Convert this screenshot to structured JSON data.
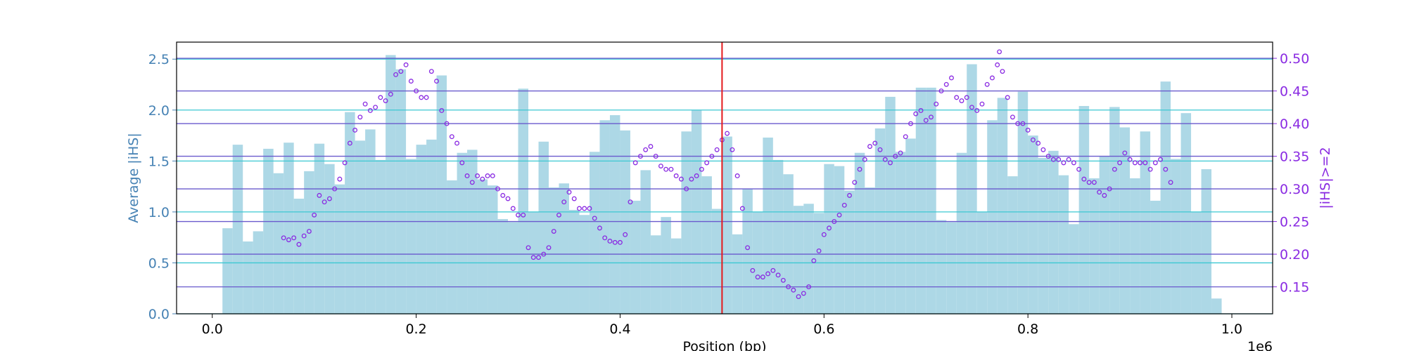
{
  "chart_data": {
    "type": "combo",
    "xlabel": "Position (bp)",
    "ylabel": "Average |iHS|",
    "y2label": "|iHS|>=2",
    "x_offset_label": "1e6",
    "xlim": [
      -35000,
      1040000
    ],
    "xticks": [
      {
        "value": 0,
        "label": "0.0"
      },
      {
        "value": 200000,
        "label": "0.2"
      },
      {
        "value": 400000,
        "label": "0.4"
      },
      {
        "value": 600000,
        "label": "0.6"
      },
      {
        "value": 800000,
        "label": "0.8"
      },
      {
        "value": 1000000,
        "label": "1.0"
      }
    ],
    "ylim": [
      0,
      2.667
    ],
    "yticks": [
      {
        "value": 0,
        "label": "0.0"
      },
      0.5,
      {
        "value": 1,
        "label": "1.0"
      },
      1.5,
      {
        "value": 2,
        "label": "2.0"
      },
      2.5
    ],
    "y2lim": [
      0.1087,
      0.5248
    ],
    "y2ticks": [
      0.15,
      {
        "value": 0.2,
        "label": "0.20"
      },
      0.25,
      {
        "value": 0.3,
        "label": "0.30"
      },
      0.35,
      {
        "value": 0.4,
        "label": "0.40"
      },
      0.45,
      {
        "value": 0.5,
        "label": "0.50"
      }
    ],
    "y_color": "#4682b4",
    "y2_color": "#8a2be2",
    "grid": true,
    "grid_color": "#3cc8d2",
    "y2grid_color": "#6a5acd",
    "vlines": [
      {
        "x": 500000,
        "color": "#e41a1c"
      }
    ],
    "series": [
      {
        "type": "bar",
        "color": "#add8e6",
        "bins": [
          10000,
          20000,
          30000,
          40000,
          50000,
          60000,
          70000,
          80000,
          90000,
          100000,
          110000,
          120000,
          130000,
          140000,
          150000,
          160000,
          170000,
          180000,
          190000,
          200000,
          210000,
          220000,
          230000,
          240000,
          250000,
          260000,
          270000,
          280000,
          290000,
          300000,
          310000,
          320000,
          330000,
          340000,
          350000,
          360000,
          370000,
          380000,
          390000,
          400000,
          410000,
          420000,
          430000,
          440000,
          450000,
          460000,
          470000,
          480000,
          490000,
          500000,
          510000,
          520000,
          530000,
          540000,
          550000,
          560000,
          570000,
          580000,
          590000,
          600000,
          610000,
          620000,
          630000,
          640000,
          650000,
          660000,
          670000,
          680000,
          690000,
          700000,
          710000,
          720000,
          730000,
          740000,
          750000,
          760000,
          770000,
          780000,
          790000,
          800000,
          810000,
          820000,
          830000,
          840000,
          850000,
          860000,
          870000,
          880000,
          890000,
          900000,
          910000,
          920000,
          930000,
          940000,
          950000,
          960000,
          970000,
          980000,
          990000
        ],
        "values": [
          0.84,
          1.66,
          0.71,
          0.81,
          1.62,
          1.38,
          1.68,
          1.13,
          1.4,
          1.67,
          1.47,
          1.27,
          1.98,
          1.7,
          1.81,
          1.51,
          2.54,
          2.4,
          1.52,
          1.66,
          1.71,
          2.34,
          1.31,
          1.58,
          1.61,
          1.32,
          1.26,
          0.93,
          0.9,
          2.21,
          1.0,
          1.69,
          1.24,
          1.28,
          1.02,
          0.97,
          1.59,
          1.9,
          1.95,
          1.8,
          1.11,
          1.41,
          0.77,
          0.95,
          0.74,
          1.79,
          2.0,
          1.35,
          1.03,
          1.74,
          0.78,
          1.23,
          1.0,
          1.73,
          1.51,
          1.37,
          1.06,
          1.08,
          0.99,
          1.47,
          1.45,
          1.21,
          1.58,
          1.24,
          1.82,
          2.13,
          1.59,
          1.72,
          2.22,
          2.22,
          0.92,
          0.9,
          1.58,
          2.45,
          1.0,
          1.9,
          2.12,
          1.35,
          2.18,
          1.75,
          1.53,
          1.6,
          1.36,
          0.88,
          2.04,
          1.33,
          1.55,
          2.03,
          1.83,
          1.33,
          1.79,
          1.11,
          2.28,
          1.52,
          1.97,
          1.0,
          1.42,
          0.15
        ]
      },
      {
        "type": "scatter",
        "axis": "y2",
        "color": "#8a2be2",
        "x": [
          70000,
          75000,
          80000,
          85000,
          90000,
          95000,
          100000,
          105000,
          110000,
          115000,
          120000,
          125000,
          130000,
          135000,
          140000,
          145000,
          150000,
          155000,
          160000,
          165000,
          170000,
          175000,
          180000,
          185000,
          190000,
          195000,
          200000,
          205000,
          210000,
          215000,
          220000,
          225000,
          230000,
          235000,
          240000,
          245000,
          250000,
          255000,
          260000,
          265000,
          270000,
          275000,
          280000,
          285000,
          290000,
          295000,
          300000,
          305000,
          310000,
          315000,
          320000,
          325000,
          330000,
          335000,
          340000,
          345000,
          350000,
          355000,
          360000,
          365000,
          370000,
          375000,
          380000,
          385000,
          390000,
          395000,
          400000,
          405000,
          410000,
          415000,
          420000,
          425000,
          430000,
          435000,
          440000,
          445000,
          450000,
          455000,
          460000,
          465000,
          470000,
          475000,
          480000,
          485000,
          490000,
          495000,
          500000,
          505000,
          510000,
          515000,
          520000,
          525000,
          530000,
          535000,
          540000,
          545000,
          550000,
          555000,
          560000,
          565000,
          570000,
          575000,
          580000,
          585000,
          590000,
          595000,
          600000,
          605000,
          610000,
          615000,
          620000,
          625000,
          630000,
          635000,
          640000,
          645000,
          650000,
          655000,
          660000,
          665000,
          670000,
          675000,
          680000,
          685000,
          690000,
          695000,
          700000,
          705000,
          710000,
          715000,
          720000,
          725000,
          730000,
          735000,
          740000,
          745000,
          750000,
          755000,
          760000,
          765000,
          770000,
          772000,
          775000,
          780000,
          785000,
          790000,
          795000,
          800000,
          805000,
          810000,
          815000,
          820000,
          825000,
          830000,
          835000,
          840000,
          845000,
          850000,
          855000,
          860000,
          865000,
          870000,
          875000,
          880000,
          885000,
          890000,
          895000,
          900000,
          905000,
          910000,
          915000,
          920000,
          925000,
          930000,
          935000,
          940000
        ],
        "values": [
          0.225,
          0.222,
          0.225,
          0.215,
          0.228,
          0.235,
          0.26,
          0.29,
          0.28,
          0.285,
          0.3,
          0.315,
          0.34,
          0.37,
          0.39,
          0.41,
          0.43,
          0.42,
          0.425,
          0.44,
          0.435,
          0.445,
          0.475,
          0.48,
          0.49,
          0.465,
          0.45,
          0.44,
          0.44,
          0.48,
          0.465,
          0.42,
          0.4,
          0.38,
          0.37,
          0.34,
          0.32,
          0.31,
          0.32,
          0.315,
          0.32,
          0.32,
          0.3,
          0.29,
          0.285,
          0.27,
          0.26,
          0.26,
          0.21,
          0.195,
          0.195,
          0.2,
          0.21,
          0.235,
          0.26,
          0.28,
          0.295,
          0.285,
          0.27,
          0.27,
          0.27,
          0.255,
          0.24,
          0.225,
          0.22,
          0.218,
          0.218,
          0.23,
          0.28,
          0.34,
          0.35,
          0.36,
          0.365,
          0.35,
          0.335,
          0.33,
          0.33,
          0.32,
          0.315,
          0.3,
          0.315,
          0.32,
          0.33,
          0.34,
          0.35,
          0.36,
          0.375,
          0.385,
          0.36,
          0.32,
          0.27,
          0.21,
          0.175,
          0.165,
          0.165,
          0.17,
          0.175,
          0.168,
          0.16,
          0.15,
          0.145,
          0.135,
          0.14,
          0.15,
          0.19,
          0.205,
          0.23,
          0.24,
          0.25,
          0.26,
          0.275,
          0.29,
          0.31,
          0.33,
          0.345,
          0.365,
          0.37,
          0.36,
          0.345,
          0.34,
          0.35,
          0.355,
          0.38,
          0.4,
          0.415,
          0.42,
          0.405,
          0.41,
          0.43,
          0.45,
          0.46,
          0.47,
          0.44,
          0.435,
          0.44,
          0.425,
          0.42,
          0.43,
          0.46,
          0.47,
          0.49,
          0.51,
          0.48,
          0.44,
          0.41,
          0.4,
          0.4,
          0.39,
          0.375,
          0.37,
          0.36,
          0.35,
          0.345,
          0.345,
          0.34,
          0.345,
          0.34,
          0.33,
          0.315,
          0.31,
          0.31,
          0.295,
          0.29,
          0.3,
          0.33,
          0.34,
          0.355,
          0.345,
          0.34,
          0.34,
          0.34,
          0.33,
          0.34,
          0.345,
          0.33,
          0.31
        ]
      }
    ]
  }
}
